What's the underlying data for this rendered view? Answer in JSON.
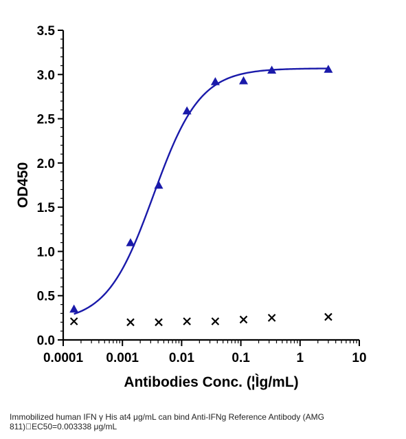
{
  "chart_data": {
    "type": "scatter",
    "xlabel": "Antibodies Conc. (¦Ìg/mL)",
    "ylabel": "OD450",
    "xscale": "log",
    "xlim": [
      0.0001,
      10
    ],
    "ylim": [
      0,
      3.5
    ],
    "xticks": [
      "0.0001",
      "0.001",
      "0.01",
      "0.1",
      "1",
      "10"
    ],
    "yticks": [
      "0.0",
      "0.5",
      "1.0",
      "1.5",
      "2.0",
      "2.5",
      "3.0",
      "3.5"
    ],
    "grid": false,
    "legend": "none",
    "series": [
      {
        "marker": "triangle",
        "color": "#1a1aaa",
        "x": [
          0.000152,
          0.00137,
          0.0041,
          0.0123,
          0.037,
          0.111,
          0.333,
          3.0
        ],
        "y": [
          0.35,
          1.1,
          1.75,
          2.59,
          2.92,
          2.93,
          3.05,
          3.06
        ]
      },
      {
        "marker": "x",
        "color": "#000000",
        "x": [
          0.000152,
          0.00137,
          0.0041,
          0.0123,
          0.037,
          0.111,
          0.333,
          3.0
        ],
        "y": [
          0.21,
          0.2,
          0.2,
          0.21,
          0.21,
          0.23,
          0.25,
          0.26
        ]
      }
    ],
    "fit_curve": {
      "color": "#1a1aaa",
      "bottom": 0.2,
      "top": 3.07,
      "ec50": 0.003338,
      "hill": 1.1
    }
  },
  "caption": {
    "line1": "Immobilized human IFN γ His at4 μg/mL can bind  Anti-IFNg Reference Antibody (AMG",
    "line2": "811)\u0000EC50=0.003338 μg/mL"
  }
}
